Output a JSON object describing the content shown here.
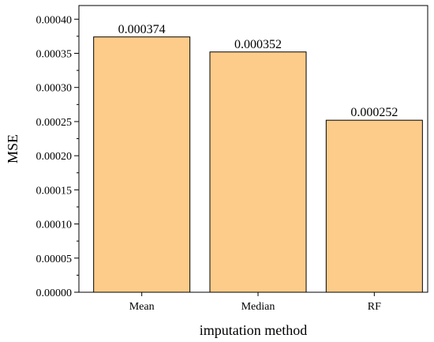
{
  "chart_data": {
    "type": "bar",
    "title": "",
    "xlabel": "imputation method",
    "ylabel": "MSE",
    "categories": [
      "Mean",
      "Median",
      "RF"
    ],
    "values": [
      0.000374,
      0.000352,
      0.000252
    ],
    "data_labels": [
      "0.000374",
      "0.000352",
      "0.000252"
    ],
    "ylim": [
      0,
      0.00042
    ],
    "yticks": [
      0.0,
      5e-05,
      0.0001,
      0.00015,
      0.0002,
      0.00025,
      0.0003,
      0.00035,
      0.0004
    ],
    "ytick_labels": [
      "0.00000",
      "0.00005",
      "0.00010",
      "0.00015",
      "0.00020",
      "0.00025",
      "0.00030",
      "0.00035",
      "0.00040"
    ],
    "grid": false,
    "legend": "none",
    "bar_color": "#fdcc8a",
    "edge_color": "#000000"
  }
}
